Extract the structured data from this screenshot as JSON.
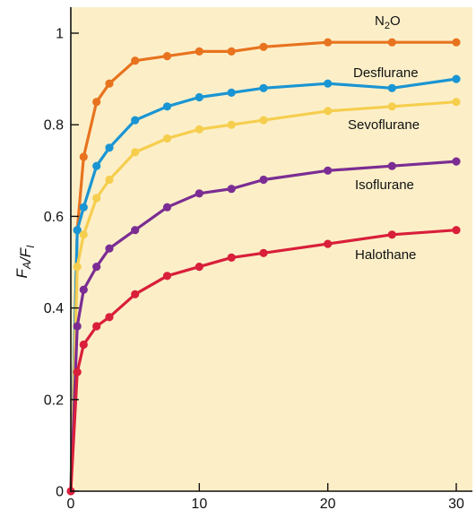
{
  "chart_data": {
    "type": "line",
    "ylabel": {
      "main": "F",
      "num_sub": "A",
      "slash": "/",
      "den": "F",
      "den_sub": "I"
    },
    "xlim": [
      0,
      30
    ],
    "ylim": [
      0,
      1
    ],
    "x_ticks": [
      0,
      10,
      20,
      30
    ],
    "x_tick_labels": [
      "0",
      "10",
      "20",
      "30"
    ],
    "y_ticks": [
      0,
      0.2,
      0.4,
      0.6,
      0.8,
      1
    ],
    "y_tick_labels": [
      "0",
      "0.2",
      "0.4",
      "0.6",
      "0.8",
      "1"
    ],
    "grid": false,
    "legend": "inline labels",
    "background": "#fcefc8",
    "x": [
      0,
      0.5,
      1,
      2,
      3,
      5,
      7.5,
      10,
      12.5,
      15,
      20,
      25,
      30
    ],
    "series": [
      {
        "name": "N2O",
        "label_main": "N",
        "label_sub": "2",
        "label_tail": "O",
        "color": "#e8731f",
        "values": [
          0,
          0.57,
          0.73,
          0.85,
          0.89,
          0.94,
          0.95,
          0.96,
          0.96,
          0.97,
          0.98,
          0.98,
          0.98
        ]
      },
      {
        "name": "Desflurane",
        "color": "#1a95d3",
        "values": [
          0,
          0.57,
          0.62,
          0.71,
          0.75,
          0.81,
          0.84,
          0.86,
          0.87,
          0.88,
          0.89,
          0.88,
          0.9
        ]
      },
      {
        "name": "Sevoflurane",
        "color": "#f6ce4e",
        "values": [
          0,
          0.49,
          0.56,
          0.64,
          0.68,
          0.74,
          0.77,
          0.79,
          0.8,
          0.81,
          0.83,
          0.84,
          0.85
        ]
      },
      {
        "name": "Isoflurane",
        "color": "#7b2d93",
        "values": [
          0,
          0.36,
          0.44,
          0.49,
          0.53,
          0.57,
          0.62,
          0.65,
          0.66,
          0.68,
          0.7,
          0.71,
          0.72
        ]
      },
      {
        "name": "Halothane",
        "color": "#d91f3a",
        "values": [
          0,
          0.26,
          0.32,
          0.36,
          0.38,
          0.43,
          0.47,
          0.49,
          0.51,
          0.52,
          0.54,
          0.56,
          0.57
        ]
      }
    ]
  }
}
